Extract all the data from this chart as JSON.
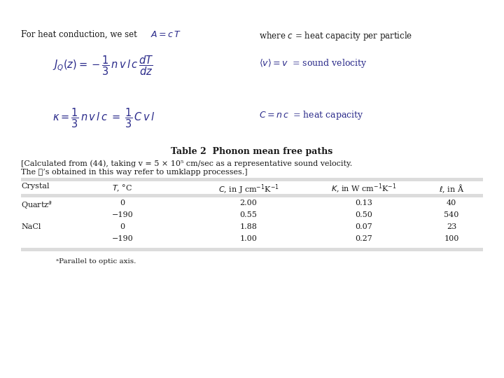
{
  "bg_color": "#ffffff",
  "text_color": "#1a1a1a",
  "formula_color": "#2a2a8a",
  "title": "Table 2  Phonon mean free paths",
  "caption_line1": "[Calculated from (44), taking v = 5 × 10⁵ cm/sec as a representative sound velocity.",
  "caption_line2": "The ℓ’s obtained in this way refer to umklapp processes.]",
  "footnote": "ᵃParallel to optic axis."
}
